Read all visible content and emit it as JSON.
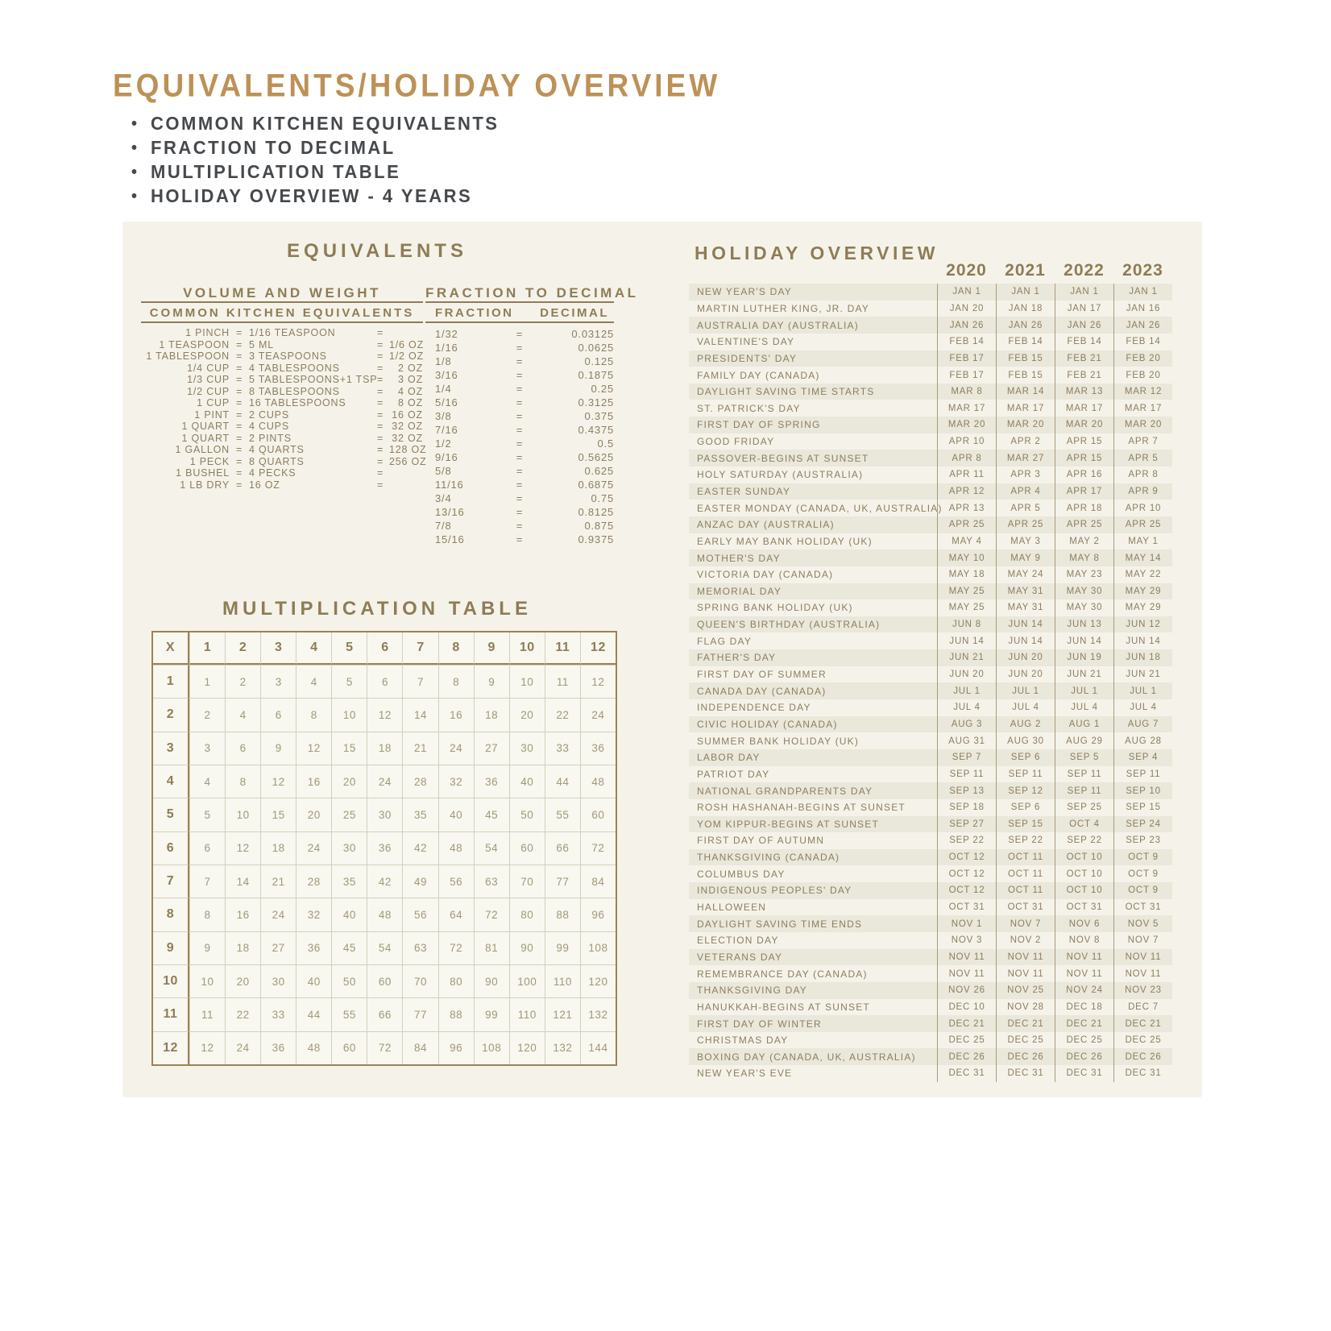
{
  "page": {
    "title": "EQUIVALENTS/HOLIDAY OVERVIEW",
    "bullet_char": "•",
    "bullets": [
      "COMMON KITCHEN EQUIVALENTS",
      "FRACTION TO DECIMAL",
      "MULTIPLICATION TABLE",
      "HOLIDAY OVERVIEW - 4 YEARS"
    ]
  },
  "colors": {
    "accent_tan": "#bd9156",
    "heading_brown": "#8e7c57",
    "body_brown": "#8c7d60",
    "panel_cream": "#f5f3e9",
    "stripe": "#eae8da"
  },
  "equivalents": {
    "title": "EQUIVALENTS",
    "volume_weight": {
      "title": "VOLUME AND WEIGHT",
      "subtitle": "COMMON KITCHEN EQUIVALENTS",
      "rows": [
        {
          "item": "1 PINCH",
          "eq": "=",
          "val": "1/16 TEASPOON",
          "eq2": "=",
          "oz": ""
        },
        {
          "item": "1 TEASPOON",
          "eq": "=",
          "val": "5 ML",
          "eq2": "=",
          "oz": "1/6 OZ"
        },
        {
          "item": "1 TABLESPOON",
          "eq": "=",
          "val": "3 TEASPOONS",
          "eq2": "=",
          "oz": "1/2 OZ"
        },
        {
          "item": "1/4 CUP",
          "eq": "=",
          "val": "4 TABLESPOONS",
          "eq2": "=",
          "oz": "2 OZ"
        },
        {
          "item": "1/3 CUP",
          "eq": "=",
          "val": "5 TABLESPOONS+1 TSP",
          "eq2": "=",
          "oz": "3 OZ"
        },
        {
          "item": "1/2 CUP",
          "eq": "=",
          "val": "8 TABLESPOONS",
          "eq2": "=",
          "oz": "4 OZ"
        },
        {
          "item": "1 CUP",
          "eq": "=",
          "val": "16 TABLESPOONS",
          "eq2": "=",
          "oz": "8 OZ"
        },
        {
          "item": "1 PINT",
          "eq": "=",
          "val": "2 CUPS",
          "eq2": "=",
          "oz": "16 OZ"
        },
        {
          "item": "1 QUART",
          "eq": "=",
          "val": "4 CUPS",
          "eq2": "=",
          "oz": "32 OZ"
        },
        {
          "item": "1 QUART",
          "eq": "=",
          "val": "2 PINTS",
          "eq2": "=",
          "oz": "32 OZ"
        },
        {
          "item": "1 GALLON",
          "eq": "=",
          "val": "4 QUARTS",
          "eq2": "=",
          "oz": "128 OZ"
        },
        {
          "item": "1 PECK",
          "eq": "=",
          "val": "8 QUARTS",
          "eq2": "=",
          "oz": "256 OZ"
        },
        {
          "item": "1 BUSHEL",
          "eq": "=",
          "val": "4 PECKS",
          "eq2": "=",
          "oz": ""
        },
        {
          "item": "1 LB DRY",
          "eq": "=",
          "val": "16 OZ",
          "eq2": "=",
          "oz": ""
        }
      ]
    },
    "fraction_decimal": {
      "title": "FRACTION TO DECIMAL",
      "col_fraction": "FRACTION",
      "col_decimal": "DECIMAL",
      "eq_char": "=",
      "rows": [
        {
          "fraction": "1/32",
          "decimal": "0.03125"
        },
        {
          "fraction": "1/16",
          "decimal": "0.0625"
        },
        {
          "fraction": "1/8",
          "decimal": "0.125"
        },
        {
          "fraction": "3/16",
          "decimal": "0.1875"
        },
        {
          "fraction": "1/4",
          "decimal": "0.25"
        },
        {
          "fraction": "5/16",
          "decimal": "0.3125"
        },
        {
          "fraction": "3/8",
          "decimal": "0.375"
        },
        {
          "fraction": "7/16",
          "decimal": "0.4375"
        },
        {
          "fraction": "1/2",
          "decimal": "0.5"
        },
        {
          "fraction": "9/16",
          "decimal": "0.5625"
        },
        {
          "fraction": "5/8",
          "decimal": "0.625"
        },
        {
          "fraction": "11/16",
          "decimal": "0.6875"
        },
        {
          "fraction": "3/4",
          "decimal": "0.75"
        },
        {
          "fraction": "13/16",
          "decimal": "0.8125"
        },
        {
          "fraction": "7/8",
          "decimal": "0.875"
        },
        {
          "fraction": "15/16",
          "decimal": "0.9375"
        }
      ]
    }
  },
  "multiplication": {
    "title": "MULTIPLICATION TABLE",
    "corner": "X",
    "headers": [
      "1",
      "2",
      "3",
      "4",
      "5",
      "6",
      "7",
      "8",
      "9",
      "10",
      "11",
      "12"
    ],
    "rows": [
      [
        "1",
        "1",
        "2",
        "3",
        "4",
        "5",
        "6",
        "7",
        "8",
        "9",
        "10",
        "11",
        "12"
      ],
      [
        "2",
        "2",
        "4",
        "6",
        "8",
        "10",
        "12",
        "14",
        "16",
        "18",
        "20",
        "22",
        "24"
      ],
      [
        "3",
        "3",
        "6",
        "9",
        "12",
        "15",
        "18",
        "21",
        "24",
        "27",
        "30",
        "33",
        "36"
      ],
      [
        "4",
        "4",
        "8",
        "12",
        "16",
        "20",
        "24",
        "28",
        "32",
        "36",
        "40",
        "44",
        "48"
      ],
      [
        "5",
        "5",
        "10",
        "15",
        "20",
        "25",
        "30",
        "35",
        "40",
        "45",
        "50",
        "55",
        "60"
      ],
      [
        "6",
        "6",
        "12",
        "18",
        "24",
        "30",
        "36",
        "42",
        "48",
        "54",
        "60",
        "66",
        "72"
      ],
      [
        "7",
        "7",
        "14",
        "21",
        "28",
        "35",
        "42",
        "49",
        "56",
        "63",
        "70",
        "77",
        "84"
      ],
      [
        "8",
        "8",
        "16",
        "24",
        "32",
        "40",
        "48",
        "56",
        "64",
        "72",
        "80",
        "88",
        "96"
      ],
      [
        "9",
        "9",
        "18",
        "27",
        "36",
        "45",
        "54",
        "63",
        "72",
        "81",
        "90",
        "99",
        "108"
      ],
      [
        "10",
        "10",
        "20",
        "30",
        "40",
        "50",
        "60",
        "70",
        "80",
        "90",
        "100",
        "110",
        "120"
      ],
      [
        "11",
        "11",
        "22",
        "33",
        "44",
        "55",
        "66",
        "77",
        "88",
        "99",
        "110",
        "121",
        "132"
      ],
      [
        "12",
        "12",
        "24",
        "36",
        "48",
        "60",
        "72",
        "84",
        "96",
        "108",
        "120",
        "132",
        "144"
      ]
    ]
  },
  "holidays": {
    "title": "HOLIDAY OVERVIEW",
    "years": [
      "2020",
      "2021",
      "2022",
      "2023"
    ],
    "rows": [
      {
        "name": "NEW YEAR'S DAY",
        "dates": [
          "JAN 1",
          "JAN 1",
          "JAN 1",
          "JAN 1"
        ]
      },
      {
        "name": "MARTIN LUTHER KING, JR. DAY",
        "dates": [
          "JAN 20",
          "JAN 18",
          "JAN 17",
          "JAN 16"
        ]
      },
      {
        "name": "AUSTRALIA DAY (AUSTRALIA)",
        "dates": [
          "JAN 26",
          "JAN 26",
          "JAN 26",
          "JAN 26"
        ]
      },
      {
        "name": "VALENTINE'S DAY",
        "dates": [
          "FEB 14",
          "FEB 14",
          "FEB 14",
          "FEB 14"
        ]
      },
      {
        "name": "PRESIDENTS' DAY",
        "dates": [
          "FEB 17",
          "FEB 15",
          "FEB 21",
          "FEB 20"
        ]
      },
      {
        "name": "FAMILY DAY (CANADA)",
        "dates": [
          "FEB 17",
          "FEB 15",
          "FEB 21",
          "FEB 20"
        ]
      },
      {
        "name": "DAYLIGHT SAVING TIME STARTS",
        "dates": [
          "MAR 8",
          "MAR 14",
          "MAR 13",
          "MAR 12"
        ]
      },
      {
        "name": "ST. PATRICK'S DAY",
        "dates": [
          "MAR 17",
          "MAR 17",
          "MAR 17",
          "MAR 17"
        ]
      },
      {
        "name": "FIRST DAY OF SPRING",
        "dates": [
          "MAR 20",
          "MAR 20",
          "MAR 20",
          "MAR 20"
        ]
      },
      {
        "name": "GOOD FRIDAY",
        "dates": [
          "APR 10",
          "APR 2",
          "APR 15",
          "APR 7"
        ]
      },
      {
        "name": "PASSOVER-BEGINS AT SUNSET",
        "dates": [
          "APR 8",
          "MAR 27",
          "APR 15",
          "APR 5"
        ]
      },
      {
        "name": "HOLY SATURDAY (AUSTRALIA)",
        "dates": [
          "APR 11",
          "APR 3",
          "APR 16",
          "APR 8"
        ]
      },
      {
        "name": "EASTER SUNDAY",
        "dates": [
          "APR 12",
          "APR 4",
          "APR 17",
          "APR 9"
        ]
      },
      {
        "name": "EASTER MONDAY (CANADA, UK, AUSTRALIA)",
        "dates": [
          "APR 13",
          "APR 5",
          "APR 18",
          "APR 10"
        ]
      },
      {
        "name": "ANZAC DAY (AUSTRALIA)",
        "dates": [
          "APR 25",
          "APR 25",
          "APR 25",
          "APR 25"
        ]
      },
      {
        "name": "EARLY MAY BANK HOLIDAY (UK)",
        "dates": [
          "MAY 4",
          "MAY 3",
          "MAY 2",
          "MAY 1"
        ]
      },
      {
        "name": "MOTHER'S DAY",
        "dates": [
          "MAY 10",
          "MAY 9",
          "MAY 8",
          "MAY 14"
        ]
      },
      {
        "name": "VICTORIA DAY (CANADA)",
        "dates": [
          "MAY 18",
          "MAY 24",
          "MAY 23",
          "MAY 22"
        ]
      },
      {
        "name": "MEMORIAL DAY",
        "dates": [
          "MAY 25",
          "MAY 31",
          "MAY 30",
          "MAY 29"
        ]
      },
      {
        "name": "SPRING BANK HOLIDAY (UK)",
        "dates": [
          "MAY 25",
          "MAY 31",
          "MAY 30",
          "MAY 29"
        ]
      },
      {
        "name": "QUEEN'S BIRTHDAY (AUSTRALIA)",
        "dates": [
          "JUN 8",
          "JUN 14",
          "JUN 13",
          "JUN 12"
        ]
      },
      {
        "name": "FLAG DAY",
        "dates": [
          "JUN 14",
          "JUN 14",
          "JUN 14",
          "JUN 14"
        ]
      },
      {
        "name": "FATHER'S DAY",
        "dates": [
          "JUN 21",
          "JUN 20",
          "JUN 19",
          "JUN 18"
        ]
      },
      {
        "name": "FIRST DAY OF SUMMER",
        "dates": [
          "JUN 20",
          "JUN 20",
          "JUN 21",
          "JUN 21"
        ]
      },
      {
        "name": "CANADA DAY (CANADA)",
        "dates": [
          "JUL 1",
          "JUL 1",
          "JUL 1",
          "JUL 1"
        ]
      },
      {
        "name": "INDEPENDENCE DAY",
        "dates": [
          "JUL 4",
          "JUL 4",
          "JUL 4",
          "JUL 4"
        ]
      },
      {
        "name": "CIVIC HOLIDAY (CANADA)",
        "dates": [
          "AUG 3",
          "AUG 2",
          "AUG 1",
          "AUG 7"
        ]
      },
      {
        "name": "SUMMER BANK HOLIDAY (UK)",
        "dates": [
          "AUG 31",
          "AUG 30",
          "AUG 29",
          "AUG 28"
        ]
      },
      {
        "name": "LABOR DAY",
        "dates": [
          "SEP 7",
          "SEP 6",
          "SEP 5",
          "SEP 4"
        ]
      },
      {
        "name": "PATRIOT DAY",
        "dates": [
          "SEP 11",
          "SEP 11",
          "SEP 11",
          "SEP 11"
        ]
      },
      {
        "name": "NATIONAL GRANDPARENTS DAY",
        "dates": [
          "SEP 13",
          "SEP 12",
          "SEP 11",
          "SEP 10"
        ]
      },
      {
        "name": "ROSH HASHANAH-BEGINS AT SUNSET",
        "dates": [
          "SEP 18",
          "SEP 6",
          "SEP 25",
          "SEP 15"
        ]
      },
      {
        "name": "YOM KIPPUR-BEGINS AT SUNSET",
        "dates": [
          "SEP 27",
          "SEP 15",
          "OCT 4",
          "SEP 24"
        ]
      },
      {
        "name": "FIRST DAY OF AUTUMN",
        "dates": [
          "SEP 22",
          "SEP 22",
          "SEP 22",
          "SEP 23"
        ]
      },
      {
        "name": "THANKSGIVING (CANADA)",
        "dates": [
          "OCT 12",
          "OCT 11",
          "OCT 10",
          "OCT 9"
        ]
      },
      {
        "name": "COLUMBUS DAY",
        "dates": [
          "OCT 12",
          "OCT 11",
          "OCT 10",
          "OCT 9"
        ]
      },
      {
        "name": "INDIGENOUS PEOPLES' DAY",
        "dates": [
          "OCT 12",
          "OCT 11",
          "OCT 10",
          "OCT 9"
        ]
      },
      {
        "name": "HALLOWEEN",
        "dates": [
          "OCT 31",
          "OCT 31",
          "OCT 31",
          "OCT 31"
        ]
      },
      {
        "name": "DAYLIGHT SAVING TIME ENDS",
        "dates": [
          "NOV 1",
          "NOV 7",
          "NOV 6",
          "NOV 5"
        ]
      },
      {
        "name": "ELECTION DAY",
        "dates": [
          "NOV 3",
          "NOV 2",
          "NOV 8",
          "NOV 7"
        ]
      },
      {
        "name": "VETERANS DAY",
        "dates": [
          "NOV 11",
          "NOV 11",
          "NOV 11",
          "NOV 11"
        ]
      },
      {
        "name": "REMEMBRANCE DAY (CANADA)",
        "dates": [
          "NOV 11",
          "NOV 11",
          "NOV 11",
          "NOV 11"
        ]
      },
      {
        "name": "THANKSGIVING DAY",
        "dates": [
          "NOV 26",
          "NOV 25",
          "NOV 24",
          "NOV 23"
        ]
      },
      {
        "name": "HANUKKAH-BEGINS AT SUNSET",
        "dates": [
          "DEC 10",
          "NOV 28",
          "DEC 18",
          "DEC 7"
        ]
      },
      {
        "name": "FIRST DAY OF WINTER",
        "dates": [
          "DEC 21",
          "DEC 21",
          "DEC 21",
          "DEC 21"
        ]
      },
      {
        "name": "CHRISTMAS DAY",
        "dates": [
          "DEC 25",
          "DEC 25",
          "DEC 25",
          "DEC 25"
        ]
      },
      {
        "name": "BOXING DAY (CANADA, UK, AUSTRALIA)",
        "dates": [
          "DEC 26",
          "DEC 26",
          "DEC 26",
          "DEC 26"
        ]
      },
      {
        "name": "NEW YEAR'S EVE",
        "dates": [
          "DEC 31",
          "DEC 31",
          "DEC 31",
          "DEC 31"
        ]
      }
    ]
  }
}
